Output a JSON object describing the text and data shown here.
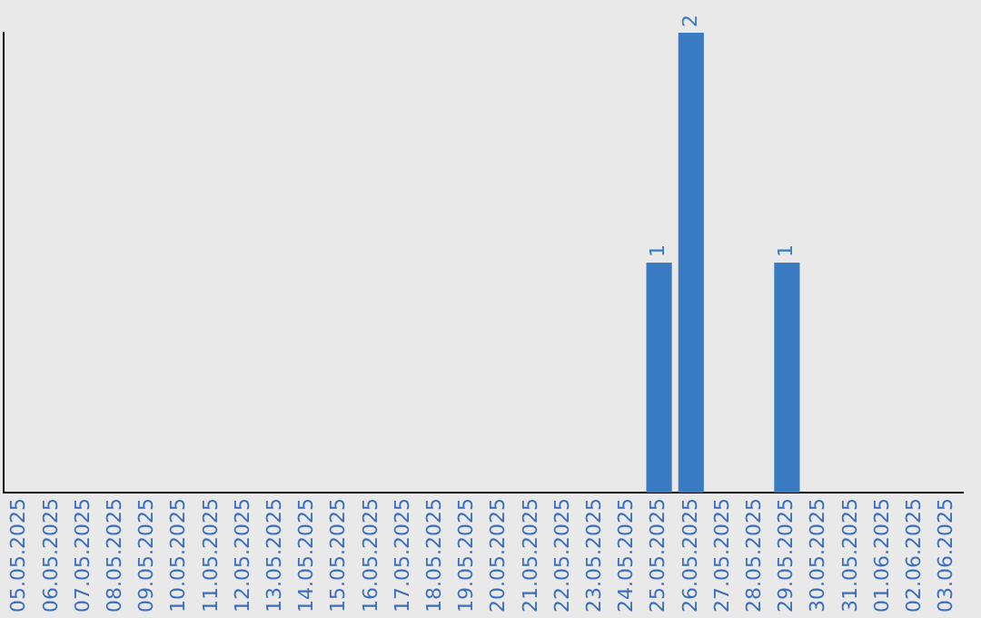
{
  "chart_data": {
    "type": "bar",
    "categories": [
      "05.05.2025",
      "06.05.2025",
      "07.05.2025",
      "08.05.2025",
      "09.05.2025",
      "10.05.2025",
      "11.05.2025",
      "12.05.2025",
      "13.05.2025",
      "14.05.2025",
      "15.05.2025",
      "16.05.2025",
      "17.05.2025",
      "18.05.2025",
      "19.05.2025",
      "20.05.2025",
      "21.05.2025",
      "22.05.2025",
      "23.05.2025",
      "24.05.2025",
      "25.05.2025",
      "26.05.2025",
      "27.05.2025",
      "28.05.2025",
      "29.05.2025",
      "30.05.2025",
      "31.05.2025",
      "01.06.2025",
      "02.06.2025",
      "03.06.2025"
    ],
    "values": [
      null,
      null,
      null,
      null,
      null,
      null,
      null,
      null,
      null,
      null,
      null,
      null,
      null,
      null,
      null,
      null,
      null,
      null,
      null,
      null,
      1,
      2,
      null,
      null,
      1,
      null,
      null,
      null,
      null,
      null
    ],
    "data_labels": true,
    "color": "#3a7cc3",
    "tick_labels": "x",
    "grid": false,
    "legend": false
  }
}
